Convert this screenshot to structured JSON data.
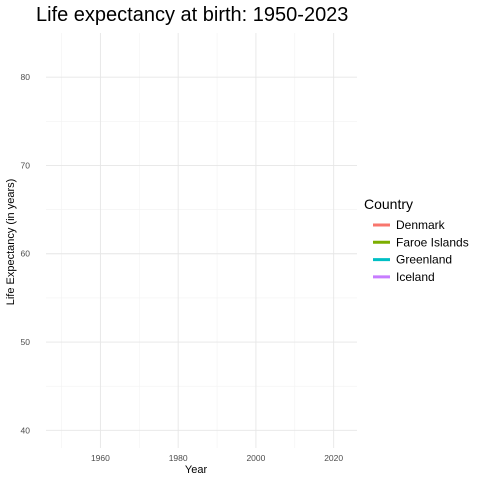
{
  "chart_data": {
    "type": "line",
    "title": "Life expectancy at birth: 1950-2023",
    "xlabel": "Year",
    "ylabel": "Life Expectancy (in years)",
    "xlim": [
      1946,
      2026
    ],
    "ylim": [
      38,
      85
    ],
    "x_ticks": [
      1960,
      1980,
      2000,
      2020
    ],
    "y_ticks": [
      40,
      50,
      60,
      70,
      80
    ],
    "grid": true,
    "legend": {
      "title": "Country",
      "placement": "right",
      "entries": [
        {
          "name": "Denmark",
          "color": "#F8766D"
        },
        {
          "name": "Faroe Islands",
          "color": "#7CAE00"
        },
        {
          "name": "Greenland",
          "color": "#00BFC4"
        },
        {
          "name": "Iceland",
          "color": "#C77CFF"
        }
      ]
    },
    "series": []
  }
}
